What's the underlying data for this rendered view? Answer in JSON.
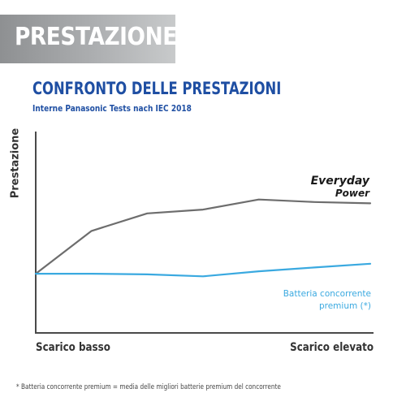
{
  "banner": {
    "text": "PRESTAZIONE"
  },
  "chart_data": {
    "type": "line",
    "title": "CONFRONTO DELLE PRESTAZIONI",
    "subtitle": "Interne Panasonic Tests nach IEC 2018",
    "ylabel": "Prestazione",
    "xlabel": "",
    "categories": [
      "Scarico basso",
      "",
      "",
      "",
      "",
      "",
      "Scarico elevato"
    ],
    "x": [
      0,
      1,
      2,
      3,
      4,
      5,
      6
    ],
    "series": [
      {
        "name": "Everyday Power",
        "name_lines": [
          "Everyday",
          "Power"
        ],
        "color": "#6d6d6d",
        "values": [
          0.12,
          0.46,
          0.6,
          0.63,
          0.71,
          0.69,
          0.68
        ]
      },
      {
        "name": "Batteria concorrente premium (*)",
        "name_lines": [
          "Batteria concorrente",
          "premium (*)"
        ],
        "color": "#3aa9e0",
        "values": [
          0.12,
          0.12,
          0.115,
          0.1,
          0.14,
          0.17,
          0.2
        ]
      }
    ],
    "xlim": [
      0,
      6
    ],
    "ylim": [
      -0.35,
      1.25
    ],
    "grid": false,
    "legend": "inline-right"
  },
  "footnote": "* Batteria concorrente premium = media delle migliori batterie premium del concorrente"
}
